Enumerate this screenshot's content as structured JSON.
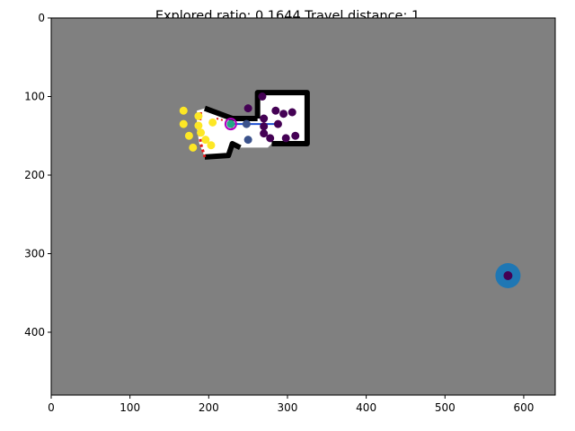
{
  "chart_data": {
    "type": "scatter",
    "title": "Explored ratio: 0.1644  Travel distance: 1",
    "xlim": [
      0,
      640
    ],
    "ylim": [
      480,
      0
    ],
    "xticks": [
      0,
      100,
      200,
      300,
      400,
      500,
      600
    ],
    "yticks": [
      0,
      100,
      200,
      300,
      400
    ],
    "colors": {
      "unknown": "#808080",
      "free": "#ffffff",
      "obstacle": "#000000",
      "frontier": "#e41a1c",
      "path": "#1f50d0",
      "goal_outer": "#1f77b4",
      "goal_inner": "#440154",
      "robot": "#b000c0"
    },
    "free_region": [
      [
        185,
        118
      ],
      [
        195,
        115
      ],
      [
        230,
        128
      ],
      [
        262,
        128
      ],
      [
        262,
        95
      ],
      [
        325,
        95
      ],
      [
        325,
        160
      ],
      [
        280,
        160
      ],
      [
        275,
        165
      ],
      [
        240,
        165
      ],
      [
        230,
        160
      ],
      [
        225,
        175
      ],
      [
        195,
        177
      ],
      [
        188,
        160
      ],
      [
        185,
        140
      ]
    ],
    "obstacle_polylines": [
      [
        [
          262,
          128
        ],
        [
          262,
          95
        ],
        [
          325,
          95
        ],
        [
          325,
          160
        ],
        [
          280,
          160
        ]
      ],
      [
        [
          240,
          165
        ],
        [
          230,
          160
        ],
        [
          225,
          175
        ],
        [
          195,
          177
        ]
      ],
      [
        [
          195,
          115
        ],
        [
          230,
          128
        ],
        [
          262,
          128
        ]
      ]
    ],
    "frontier_polyline": [
      [
        190,
        120
      ],
      [
        188,
        140
      ],
      [
        190,
        160
      ],
      [
        195,
        177
      ]
    ],
    "frontier_right": [
      [
        210,
        128
      ],
      [
        225,
        132
      ],
      [
        230,
        140
      ]
    ],
    "points": [
      {
        "x": 168,
        "y": 118,
        "c": "#fde725"
      },
      {
        "x": 187,
        "y": 125,
        "c": "#fde725"
      },
      {
        "x": 205,
        "y": 133,
        "c": "#fde725"
      },
      {
        "x": 168,
        "y": 135,
        "c": "#fde725"
      },
      {
        "x": 187,
        "y": 137,
        "c": "#fde725"
      },
      {
        "x": 175,
        "y": 150,
        "c": "#fde725"
      },
      {
        "x": 190,
        "y": 146,
        "c": "#fde725"
      },
      {
        "x": 196,
        "y": 155,
        "c": "#fde725"
      },
      {
        "x": 203,
        "y": 162,
        "c": "#fde725"
      },
      {
        "x": 180,
        "y": 165,
        "c": "#fde725"
      },
      {
        "x": 228,
        "y": 135,
        "c": "#22a884"
      },
      {
        "x": 248,
        "y": 135,
        "c": "#3b528b"
      },
      {
        "x": 268,
        "y": 100,
        "c": "#440154"
      },
      {
        "x": 250,
        "y": 115,
        "c": "#440154"
      },
      {
        "x": 285,
        "y": 118,
        "c": "#440154"
      },
      {
        "x": 295,
        "y": 122,
        "c": "#440154"
      },
      {
        "x": 306,
        "y": 120,
        "c": "#440154"
      },
      {
        "x": 270,
        "y": 128,
        "c": "#440154"
      },
      {
        "x": 270,
        "y": 138,
        "c": "#440154"
      },
      {
        "x": 288,
        "y": 135,
        "c": "#440154"
      },
      {
        "x": 270,
        "y": 147,
        "c": "#440154"
      },
      {
        "x": 278,
        "y": 153,
        "c": "#440154"
      },
      {
        "x": 298,
        "y": 153,
        "c": "#440154"
      },
      {
        "x": 310,
        "y": 150,
        "c": "#440154"
      },
      {
        "x": 250,
        "y": 155,
        "c": "#3b528b"
      }
    ],
    "path": [
      [
        228,
        135
      ],
      [
        248,
        135
      ],
      [
        268,
        135
      ],
      [
        288,
        135
      ]
    ],
    "robot": {
      "x": 228,
      "y": 135
    },
    "goal": {
      "x": 580,
      "y": 328
    }
  }
}
